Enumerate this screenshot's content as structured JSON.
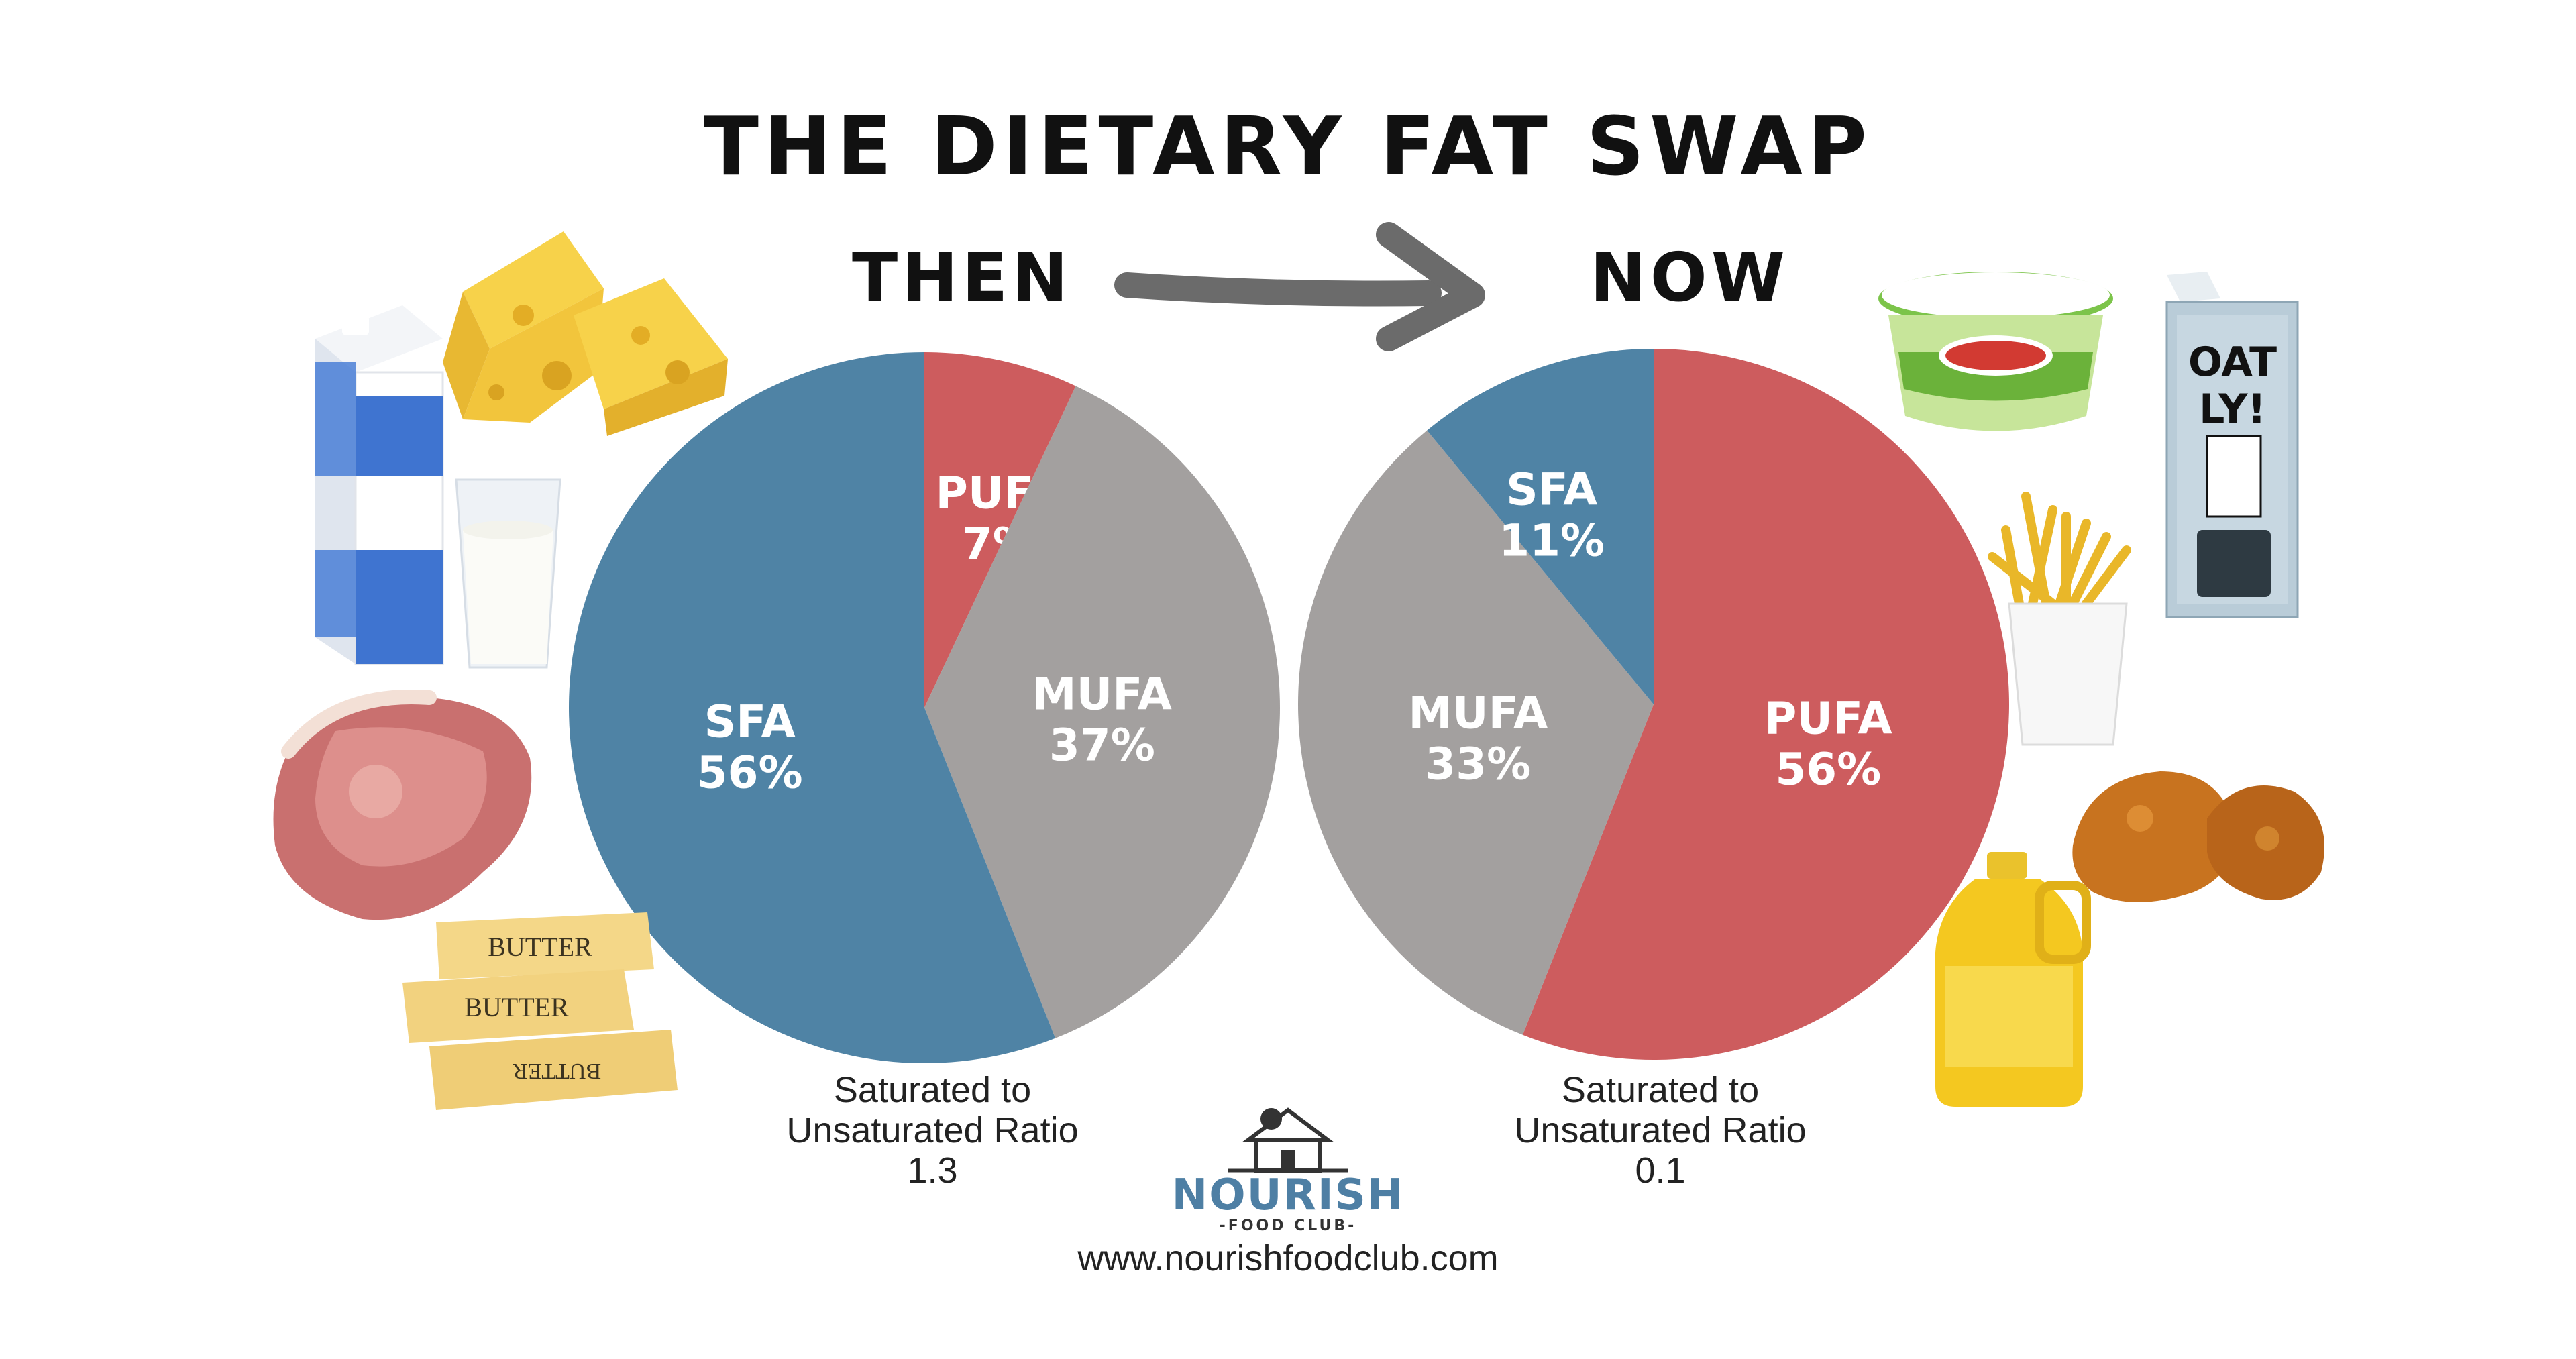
{
  "title": "THE DIETARY FAT SWAP",
  "labels": {
    "then": "THEN",
    "now": "NOW"
  },
  "chart_data": [
    {
      "type": "pie",
      "name": "then",
      "slices": [
        {
          "label": "PUFA",
          "value": 7,
          "display": "7%",
          "color": "#cd5c5e"
        },
        {
          "label": "MUFA",
          "value": 37,
          "display": "37%",
          "color": "#a3a09f"
        },
        {
          "label": "SFA",
          "value": 56,
          "display": "56%",
          "color": "#4f83a5"
        }
      ],
      "ratio_caption": [
        "Saturated to",
        "Unsaturated Ratio",
        "1.3"
      ]
    },
    {
      "type": "pie",
      "name": "now",
      "slices": [
        {
          "label": "PUFA",
          "value": 56,
          "display": "56%",
          "color": "#cd5c5e"
        },
        {
          "label": "MUFA",
          "value": 33,
          "display": "33%",
          "color": "#a3a09f"
        },
        {
          "label": "SFA",
          "value": 11,
          "display": "11%",
          "color": "#4f83a5"
        }
      ],
      "ratio_caption": [
        "Saturated to",
        "Unsaturated Ratio",
        "0.1"
      ]
    }
  ],
  "footer": {
    "logo_main": "NOURISH",
    "logo_sub": "-FOOD CLUB-",
    "url": "www.nourishfoodclub.com"
  },
  "images": {
    "left": [
      "milk-carton",
      "milk-glass",
      "cheese",
      "pork-chop",
      "butter-sticks"
    ],
    "right": [
      "margarine-tub",
      "oat-milk-carton",
      "french-fries",
      "fried-chicken",
      "oil-bottle"
    ]
  }
}
